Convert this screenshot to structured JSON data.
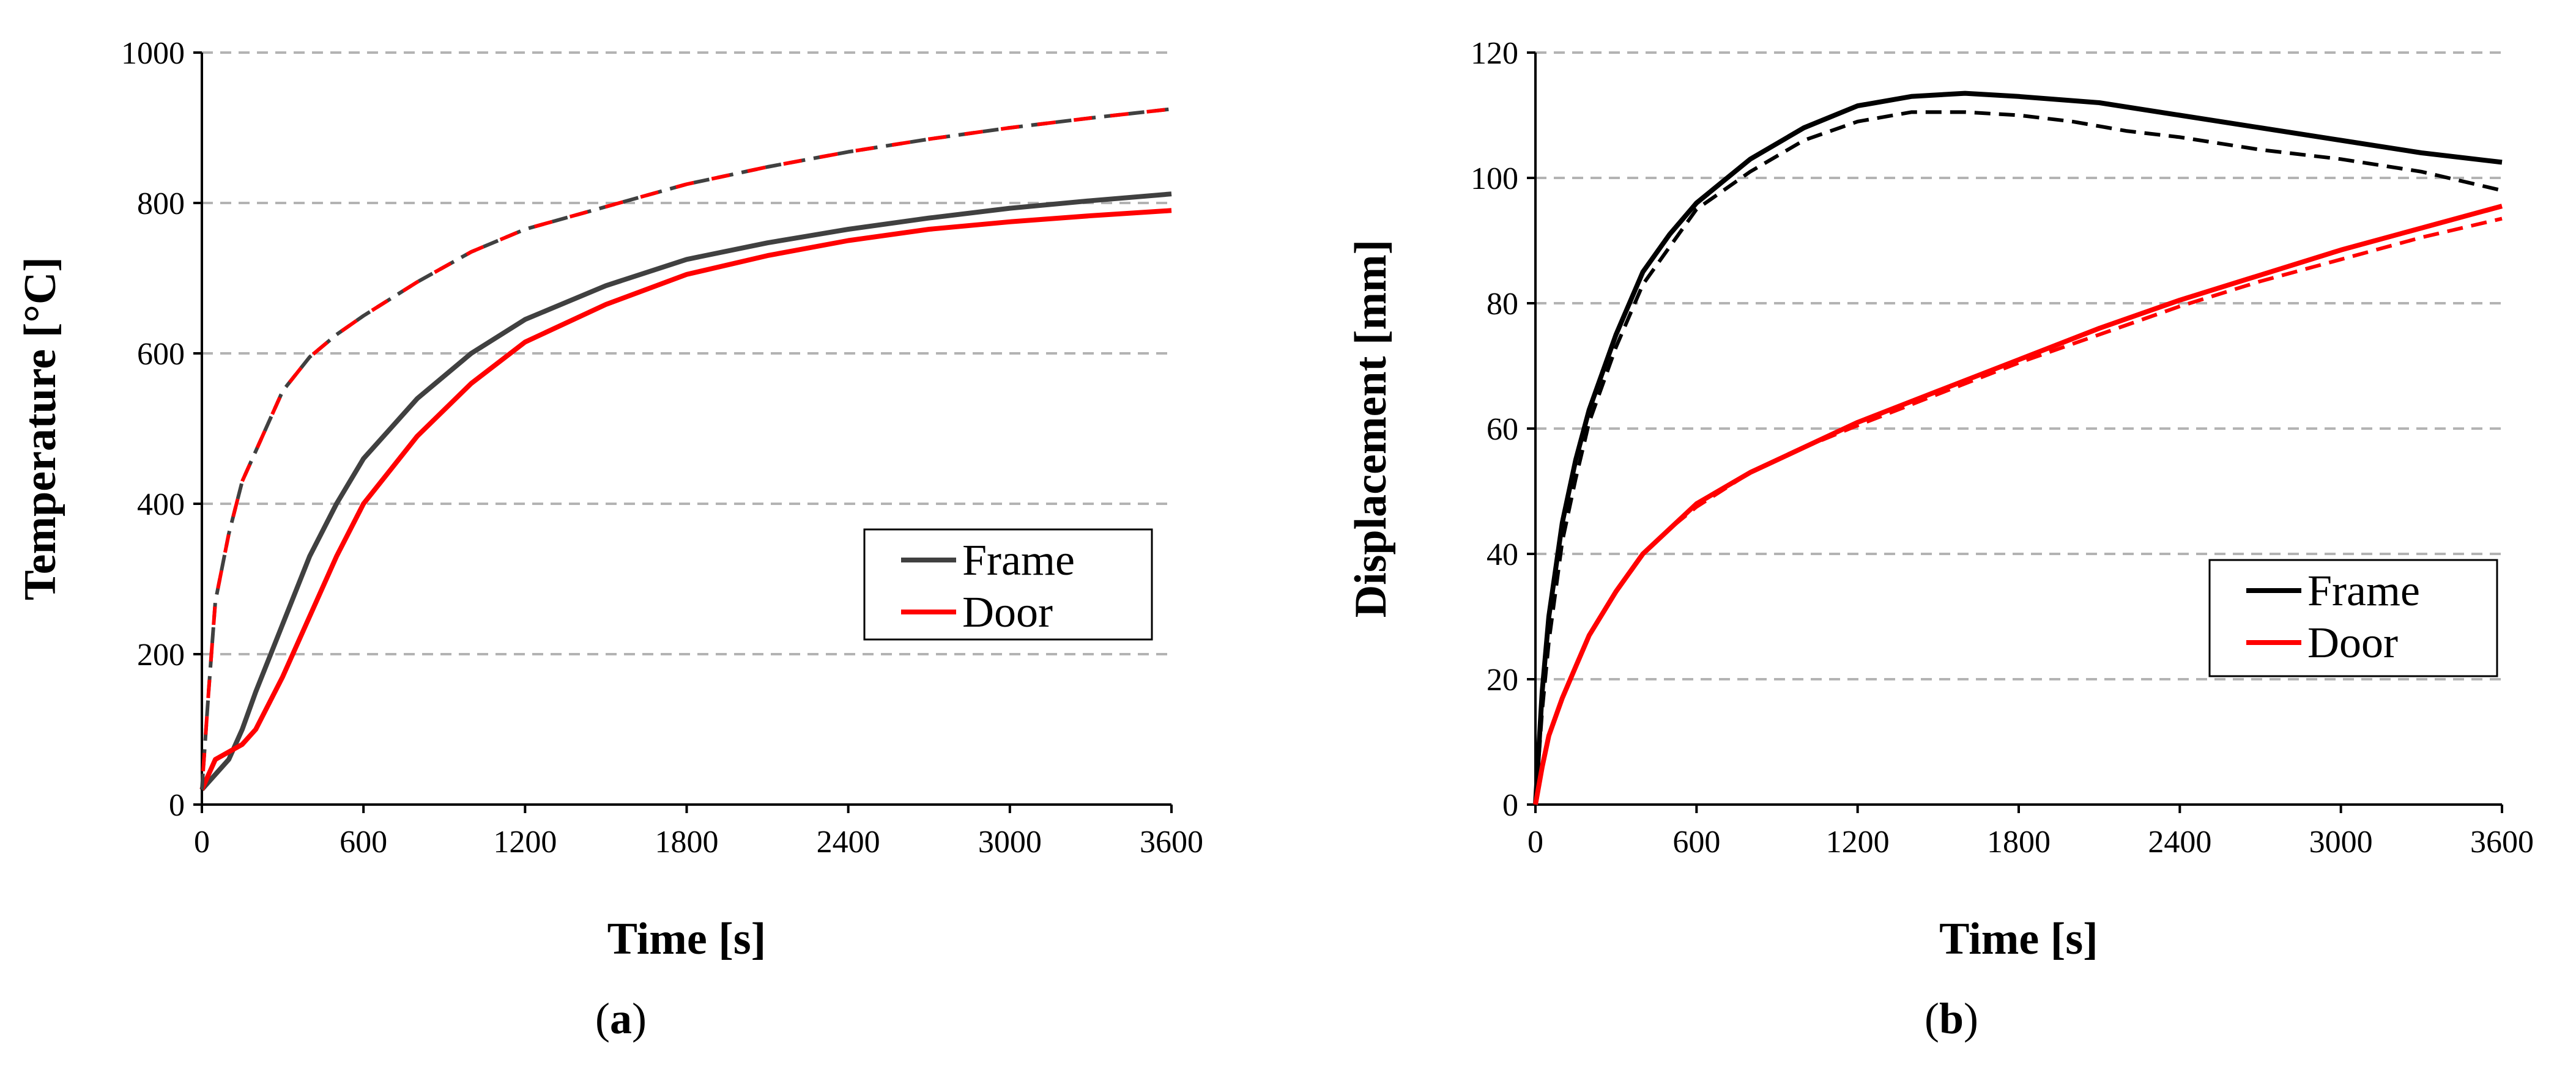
{
  "figure": {
    "panels": [
      {
        "label": "(",
        "bold": "a",
        "close": ")"
      },
      {
        "label": "(",
        "bold": "b",
        "close": ")"
      }
    ]
  },
  "chart_data": [
    {
      "type": "line",
      "title": "",
      "xlabel": "Time [s]",
      "ylabel": "Temperature [°C]",
      "xlim": [
        0,
        3600
      ],
      "ylim": [
        0,
        1000
      ],
      "xticks": [
        0,
        600,
        1200,
        1800,
        2400,
        3000,
        3600
      ],
      "yticks": [
        0,
        200,
        400,
        600,
        800,
        1000
      ],
      "grid": "horizontal dashed",
      "legend": {
        "position": "right",
        "entries": [
          {
            "name": "Frame",
            "color": "#404040"
          },
          {
            "name": "Door",
            "color": "#ff0000"
          }
        ]
      },
      "series": [
        {
          "name": "Frame",
          "color": "#404040",
          "style": "solid",
          "x": [
            0,
            50,
            100,
            150,
            200,
            300,
            400,
            500,
            600,
            800,
            1000,
            1200,
            1500,
            1800,
            2100,
            2400,
            2700,
            3000,
            3300,
            3600
          ],
          "y": [
            20,
            40,
            60,
            100,
            150,
            240,
            330,
            400,
            460,
            540,
            600,
            645,
            690,
            725,
            747,
            765,
            780,
            793,
            803,
            812
          ]
        },
        {
          "name": "Door",
          "color": "#ff0000",
          "style": "solid",
          "x": [
            0,
            50,
            100,
            150,
            200,
            300,
            400,
            500,
            600,
            800,
            1000,
            1200,
            1500,
            1800,
            2100,
            2400,
            2700,
            3000,
            3300,
            3600
          ],
          "y": [
            20,
            60,
            70,
            80,
            100,
            170,
            250,
            330,
            400,
            490,
            560,
            615,
            665,
            705,
            730,
            750,
            765,
            775,
            783,
            790
          ]
        },
        {
          "name": "",
          "color": "#404040",
          "style": "dashed",
          "x": [
            0,
            25,
            50,
            100,
            150,
            200,
            300,
            400,
            500,
            600,
            800,
            1000,
            1200,
            1500,
            1800,
            2100,
            2400,
            2700,
            3000,
            3300,
            3600
          ],
          "y": [
            20,
            150,
            270,
            360,
            430,
            470,
            550,
            595,
            625,
            650,
            695,
            735,
            765,
            795,
            825,
            848,
            868,
            885,
            900,
            913,
            925
          ]
        },
        {
          "name": "",
          "color": "#ff0000",
          "style": "dashed",
          "x": [
            0,
            25,
            50,
            100,
            150,
            200,
            300,
            400,
            500,
            600,
            800,
            1000,
            1200,
            1500,
            1800,
            2100,
            2400,
            2700,
            3000,
            3300,
            3600
          ],
          "y": [
            20,
            150,
            270,
            360,
            430,
            470,
            550,
            595,
            625,
            650,
            695,
            735,
            765,
            795,
            825,
            848,
            868,
            885,
            900,
            913,
            925
          ]
        }
      ]
    },
    {
      "type": "line",
      "title": "",
      "xlabel": "Time [s]",
      "ylabel": "Displacement [mm]",
      "xlim": [
        0,
        3600
      ],
      "ylim": [
        0,
        120
      ],
      "xticks": [
        0,
        600,
        1200,
        1800,
        2400,
        3000,
        3600
      ],
      "yticks": [
        0,
        20,
        40,
        60,
        80,
        100,
        120
      ],
      "grid": "horizontal dashed",
      "legend": {
        "position": "right",
        "entries": [
          {
            "name": "Frame",
            "color": "#000000"
          },
          {
            "name": "Door",
            "color": "#ff0000"
          }
        ]
      },
      "series": [
        {
          "name": "Frame",
          "color": "#000000",
          "style": "solid",
          "x": [
            0,
            25,
            50,
            100,
            150,
            200,
            300,
            400,
            500,
            600,
            800,
            1000,
            1200,
            1400,
            1600,
            1800,
            2100,
            2400,
            2700,
            3000,
            3300,
            3600
          ],
          "y": [
            0,
            18,
            30,
            45,
            55,
            63,
            75,
            85,
            91,
            96,
            103,
            108,
            111.5,
            113,
            113.5,
            113,
            112,
            110,
            108,
            106,
            104,
            102.5
          ]
        },
        {
          "name": "",
          "color": "#000000",
          "style": "dashed",
          "x": [
            0,
            25,
            50,
            100,
            150,
            200,
            300,
            400,
            500,
            600,
            800,
            1000,
            1200,
            1400,
            1600,
            1800,
            2000,
            2200,
            2400,
            2700,
            3000,
            3300,
            3600
          ],
          "y": [
            0,
            15,
            26,
            42,
            52,
            61,
            73,
            83,
            89,
            95,
            101,
            106,
            109,
            110.5,
            110.5,
            110,
            109,
            107.5,
            106.5,
            104.5,
            103,
            101,
            98
          ]
        },
        {
          "name": "Door",
          "color": "#ff0000",
          "style": "solid",
          "x": [
            0,
            25,
            50,
            100,
            150,
            200,
            300,
            400,
            500,
            600,
            800,
            1000,
            1200,
            1500,
            1800,
            2100,
            2400,
            2700,
            3000,
            3300,
            3600
          ],
          "y": [
            0,
            6,
            11,
            17,
            22,
            27,
            34,
            40,
            44,
            48,
            53,
            57,
            61,
            66,
            71,
            76,
            80.5,
            84.5,
            88.5,
            92,
            95.5
          ]
        },
        {
          "name": "",
          "color": "#ff0000",
          "style": "dashed",
          "x": [
            0,
            25,
            50,
            100,
            150,
            200,
            300,
            400,
            500,
            600,
            800,
            1000,
            1200,
            1500,
            1800,
            2100,
            2400,
            2700,
            3000,
            3300,
            3600
          ],
          "y": [
            0,
            6,
            11,
            17,
            22,
            27,
            34,
            40,
            44,
            47.5,
            53,
            57,
            60.5,
            65.5,
            70.5,
            75,
            79.5,
            83.5,
            87,
            90.5,
            93.5
          ]
        }
      ]
    }
  ]
}
